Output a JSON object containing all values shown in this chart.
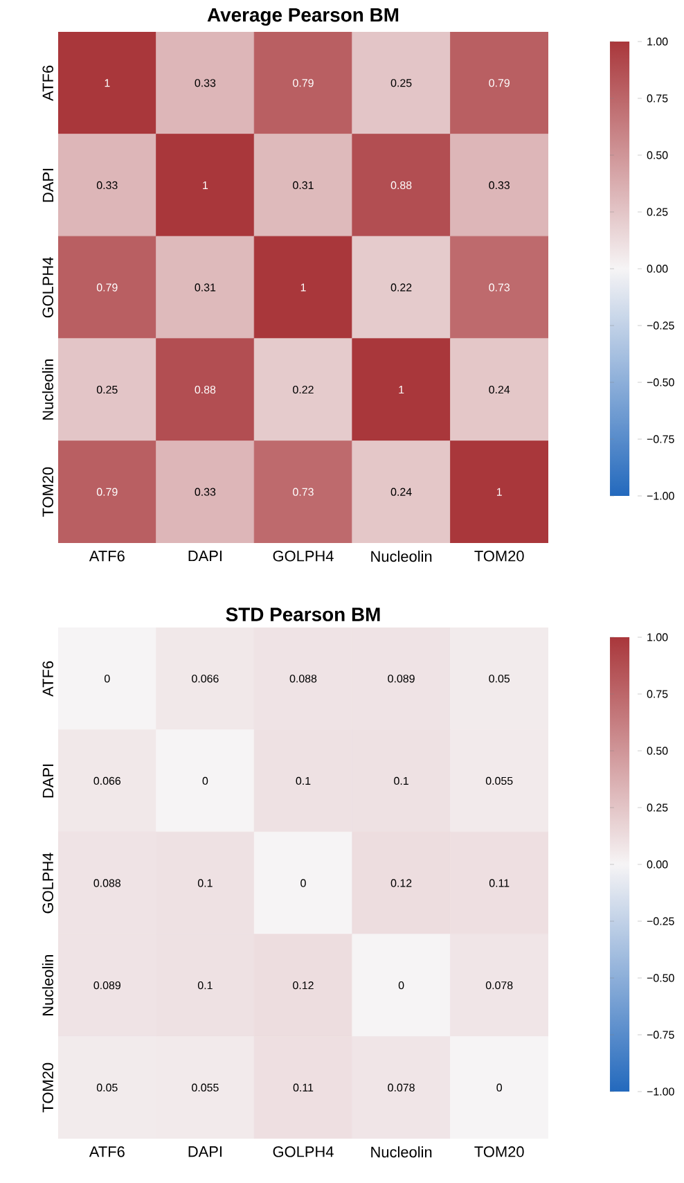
{
  "chart_data": [
    {
      "type": "heatmap",
      "title": "Average Pearson BM",
      "categories": [
        "ATF6",
        "DAPI",
        "GOLPH4",
        "Nucleolin",
        "TOM20"
      ],
      "y_categories": [
        "ATF6",
        "DAPI",
        "GOLPH4",
        "Nucleolin",
        "TOM20"
      ],
      "cells": [
        [
          1,
          0.33,
          0.79,
          0.25,
          0.79
        ],
        [
          0.33,
          1,
          0.31,
          0.88,
          0.33
        ],
        [
          0.79,
          0.31,
          1,
          0.22,
          0.73
        ],
        [
          0.25,
          0.88,
          0.22,
          1,
          0.24
        ],
        [
          0.79,
          0.33,
          0.73,
          0.24,
          1
        ]
      ],
      "data_labels": true,
      "clim": [
        -1,
        1
      ],
      "cticks": [
        {
          "value": -1,
          "label": "−1.00"
        },
        {
          "value": -0.75,
          "label": "−0.75"
        },
        {
          "value": -0.5,
          "label": "−0.50"
        },
        {
          "value": -0.25,
          "label": "−0.25"
        },
        {
          "value": 0,
          "label": "0.00"
        },
        {
          "value": 0.25,
          "label": "0.25"
        },
        {
          "value": 0.5,
          "label": "0.50"
        },
        {
          "value": 0.75,
          "label": "0.75"
        },
        {
          "value": 1,
          "label": "1.00"
        }
      ]
    },
    {
      "type": "heatmap",
      "title": "STD Pearson BM",
      "categories": [
        "ATF6",
        "DAPI",
        "GOLPH4",
        "Nucleolin",
        "TOM20"
      ],
      "y_categories": [
        "ATF6",
        "DAPI",
        "GOLPH4",
        "Nucleolin",
        "TOM20"
      ],
      "cells": [
        [
          0,
          0.066,
          0.088,
          0.089,
          0.05
        ],
        [
          0.066,
          0,
          0.1,
          0.1,
          0.055
        ],
        [
          0.088,
          0.1,
          0,
          0.12,
          0.11
        ],
        [
          0.089,
          0.1,
          0.12,
          0,
          0.078
        ],
        [
          0.05,
          0.055,
          0.11,
          0.078,
          0
        ]
      ],
      "data_labels": true,
      "clim": [
        -1,
        1
      ],
      "cticks": [
        {
          "value": -1,
          "label": "−1.00"
        },
        {
          "value": -0.75,
          "label": "−0.75"
        },
        {
          "value": -0.5,
          "label": "−0.50"
        },
        {
          "value": -0.25,
          "label": "−0.25"
        },
        {
          "value": 0,
          "label": "0.00"
        },
        {
          "value": 0.25,
          "label": "0.25"
        },
        {
          "value": 0.5,
          "label": "0.50"
        },
        {
          "value": 0.75,
          "label": "0.75"
        },
        {
          "value": 1,
          "label": "1.00"
        }
      ]
    }
  ]
}
